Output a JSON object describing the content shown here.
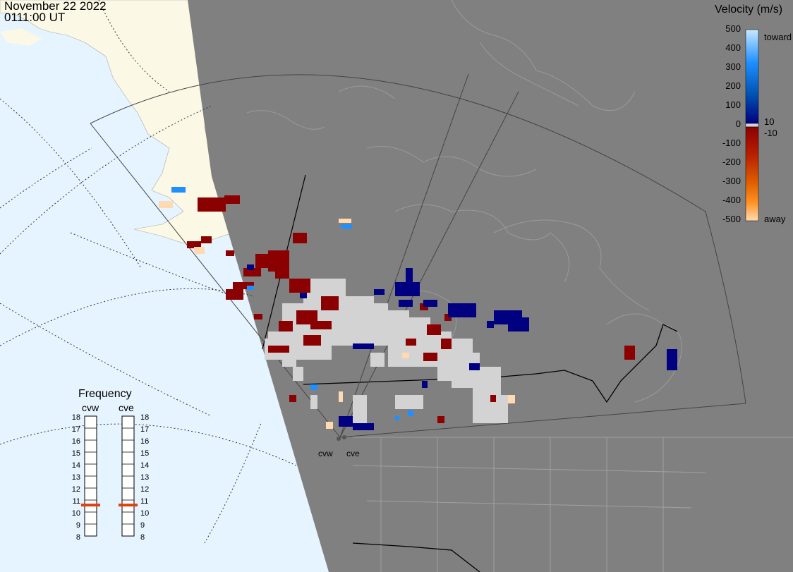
{
  "header": {
    "date": "November 22 2022",
    "time": "0111:00 UT"
  },
  "velocity_scale": {
    "title": "Velocity (m/s)",
    "ticks": [
      "500",
      "400",
      "300",
      "200",
      "100",
      "0",
      "-100",
      "-200",
      "-300",
      "-400",
      "-500"
    ],
    "label_toward": "toward",
    "label_away": "away",
    "label_plus10": "10",
    "label_minus10": "-10",
    "colors": {
      "toward_high": "#c8e8ff",
      "toward_mid": "#1e90ff",
      "toward_low": "#000080",
      "away_low": "#8b0000",
      "away_mid": "#ff7f00",
      "away_high": "#ffdab0",
      "ground_scatter": "#d3d3d3"
    }
  },
  "frequency_panel": {
    "title": "Frequency",
    "radars": [
      "cvw",
      "cve"
    ],
    "scale": [
      "18",
      "17",
      "16",
      "15",
      "14",
      "13",
      "12",
      "11",
      "10",
      "9",
      "8"
    ],
    "cvw_mhz": 10.7,
    "cve_mhz": 10.7,
    "marker_color": "#e04010"
  },
  "map": {
    "site_labels": [
      "cvw",
      "cve"
    ],
    "ocean_color": "#e6f4ff",
    "land_color": "#fbf8e6",
    "night_color": "#808080"
  }
}
